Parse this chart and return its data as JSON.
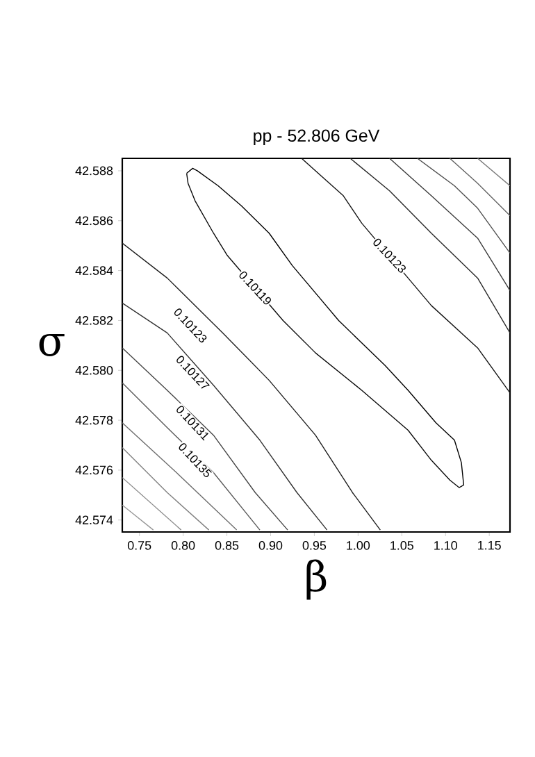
{
  "chart_data": {
    "type": "line",
    "title": "pp - 52.806 GeV",
    "xlabel": "β",
    "ylabel": "σ",
    "xlim": [
      0.7304,
      1.1737
    ],
    "ylim": [
      42.57352,
      42.5885
    ],
    "xticks": [
      0.75,
      {
        "value": 0.8,
        "label": "0.80"
      },
      0.85,
      {
        "value": 0.9,
        "label": "0.90"
      },
      0.95,
      {
        "value": 1.0,
        "label": "1.00"
      },
      1.05,
      {
        "value": 1.1,
        "label": "1.10"
      },
      1.15
    ],
    "yticks": [
      42.574,
      42.576,
      42.578,
      {
        "value": 42.58,
        "label": "42.580"
      },
      42.582,
      42.584,
      42.586,
      42.588
    ],
    "series": [
      {
        "color": "#000000",
        "x": [
          0.804,
          0.8109,
          0.8162,
          0.84,
          0.8665,
          0.8983,
          0.9248,
          0.9513,
          0.9778,
          1.0042,
          1.0307,
          1.0572,
          1.089,
          1.1102,
          1.1181,
          1.1208
        ],
        "values": [
          42.5879,
          42.5881,
          42.588,
          42.5874,
          42.5866,
          42.5855,
          42.5842,
          42.5831,
          42.582,
          42.5811,
          42.5802,
          42.5792,
          42.5779,
          42.5772,
          42.5763,
          42.5754
        ]
      },
      {
        "color": "#0a0a0a",
        "x": [
          1.1208,
          1.1155,
          1.1049,
          1.0837,
          1.0572,
          1.0042,
          0.9513,
          0.9142,
          0.8506,
          0.8347,
          0.8136,
          0.8056,
          0.804
        ],
        "values": [
          42.5754,
          42.5753,
          42.5756,
          42.5764,
          42.5776,
          42.5792,
          42.5807,
          42.582,
          42.5846,
          42.5855,
          42.5868,
          42.5875,
          42.5879
        ]
      },
      {
        "color": "#141414",
        "x": [
          0.9354,
          0.9831,
          1.0042,
          1.0837,
          1.1367,
          1.1737
        ],
        "values": [
          42.5885,
          42.587,
          42.5859,
          42.5826,
          42.5809,
          42.5791
        ]
      },
      {
        "color": "#282828",
        "x": [
          0.991,
          1.036,
          1.0837,
          1.1367,
          1.1737
        ],
        "values": [
          42.5885,
          42.5872,
          42.5855,
          42.5837,
          42.5815
        ]
      },
      {
        "color": "#3c3c3c",
        "x": [
          1.036,
          1.0837,
          1.1367,
          1.1737
        ],
        "values": [
          42.5885,
          42.587,
          42.5853,
          42.5832
        ]
      },
      {
        "color": "#505050",
        "x": [
          1.0678,
          1.1102,
          1.1367,
          1.1737
        ],
        "values": [
          42.5885,
          42.5874,
          42.5865,
          42.5847
        ]
      },
      {
        "color": "#646464",
        "x": [
          1.1049,
          1.1367,
          1.1737
        ],
        "values": [
          42.5885,
          42.5875,
          42.5862
        ]
      },
      {
        "color": "#787878",
        "x": [
          1.1367,
          1.1737
        ],
        "values": [
          42.5885,
          42.5874
        ]
      },
      {
        "color": "#1e1e1e",
        "x": [
          0.7304,
          0.7818,
          0.8453,
          0.8983,
          0.9513,
          0.9936,
          1.0254
        ],
        "values": [
          42.5851,
          42.5837,
          42.5815,
          42.5796,
          42.5774,
          42.5751,
          42.5736
        ]
      },
      {
        "color": "#323232",
        "x": [
          0.7304,
          0.7818,
          0.8347,
          0.8877,
          0.9301,
          0.9645
        ],
        "values": [
          42.5827,
          42.5815,
          42.5794,
          42.5772,
          42.5751,
          42.5736
        ]
      },
      {
        "color": "#464646",
        "x": [
          0.7304,
          0.7818,
          0.8347,
          0.8824,
          0.9195
        ],
        "values": [
          42.5809,
          42.5792,
          42.5774,
          42.5751,
          42.5736
        ]
      },
      {
        "color": "#5a5a5a",
        "x": [
          0.7304,
          0.7818,
          0.8347,
          0.8877
        ],
        "values": [
          42.5795,
          42.5777,
          42.5759,
          42.5736
        ]
      },
      {
        "color": "#6e6e6e",
        "x": [
          0.7304,
          0.7924,
          0.8612
        ],
        "values": [
          42.5779,
          42.5759,
          42.5736
        ]
      },
      {
        "color": "#828282",
        "x": [
          0.7304,
          0.7818,
          0.8294
        ],
        "values": [
          42.5769,
          42.5751,
          42.5736
        ]
      },
      {
        "color": "#8c8c8c",
        "x": [
          0.7304,
          0.7977
        ],
        "values": [
          42.5757,
          42.5736
        ]
      },
      {
        "color": "#969696",
        "x": [
          0.7304,
          0.7659
        ],
        "values": [
          42.5746,
          42.5736
        ]
      }
    ],
    "annotations": [
      {
        "text": "0.10119",
        "x": 0.8824,
        "y": 42.5833
      },
      {
        "text": "0.10123",
        "x": 1.036,
        "y": 42.5846
      },
      {
        "text": "0.10123",
        "x": 0.8083,
        "y": 42.5818
      },
      {
        "text": "0.10127",
        "x": 0.8109,
        "y": 42.5799
      },
      {
        "text": "0.10131",
        "x": 0.8109,
        "y": 42.5779
      },
      {
        "text": "0.10135",
        "x": 0.8136,
        "y": 42.5764
      }
    ]
  }
}
